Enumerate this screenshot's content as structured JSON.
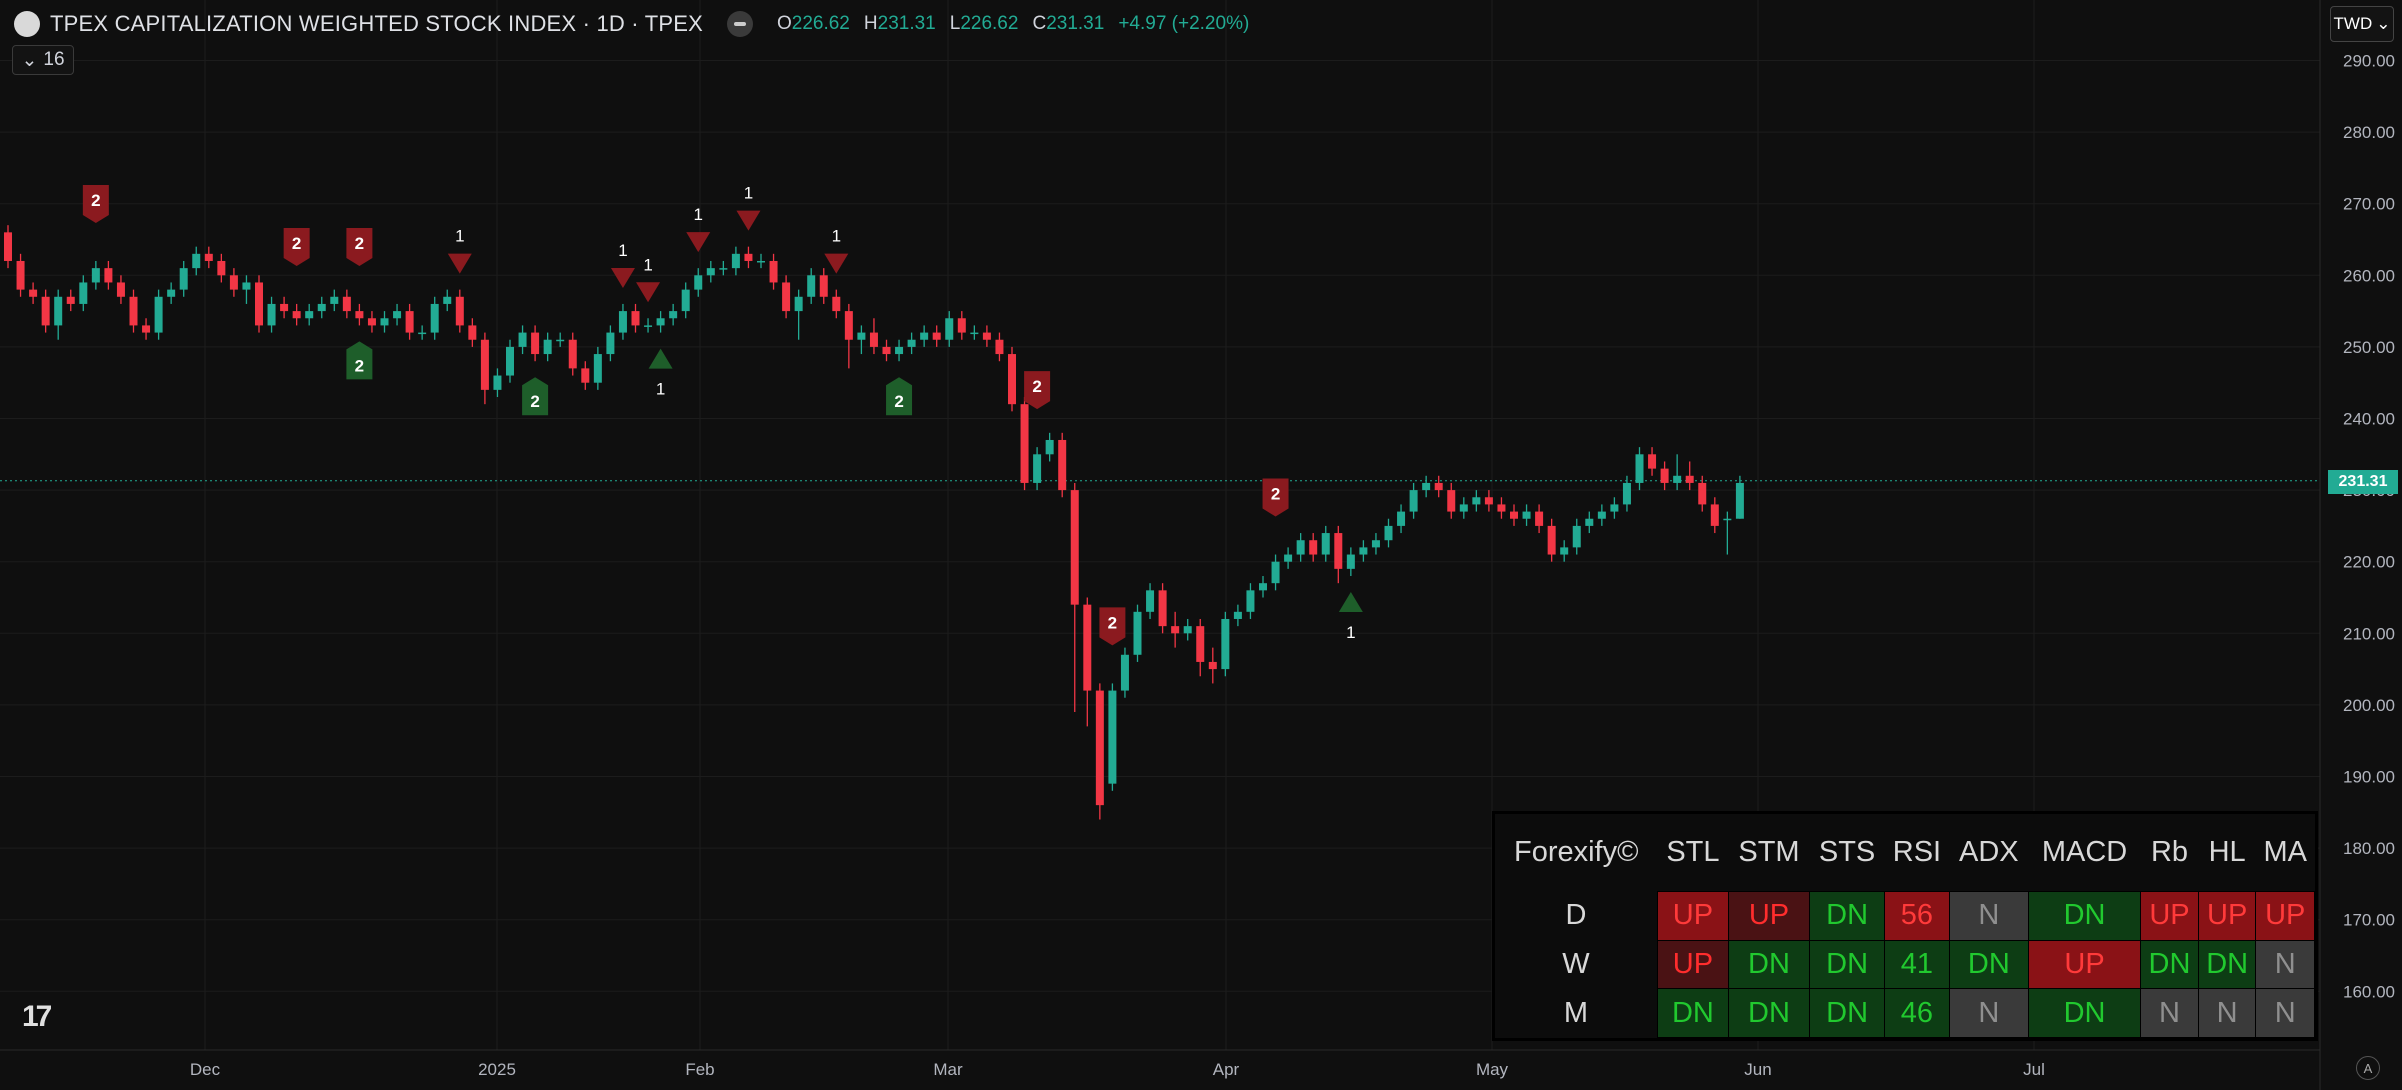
{
  "header": {
    "title": "TPEX CAPITALIZATION WEIGHTED STOCK INDEX · 1D · TPEX",
    "o_label": "O",
    "o_value": "226.62",
    "h_label": "H",
    "h_value": "231.31",
    "l_label": "L",
    "l_value": "226.62",
    "c_label": "C",
    "c_value": "231.31",
    "change": "+4.97 (+2.20%)"
  },
  "indicator_count": "16",
  "currency": "TWD",
  "last_price": "231.31",
  "colors": {
    "up": "#22ab94",
    "down": "#f23645",
    "buy_marker": "#1e5e2a",
    "sell_marker": "#8b1a1f"
  },
  "price_axis": {
    "ticks": [
      "290.00",
      "280.00",
      "270.00",
      "260.00",
      "250.00",
      "240.00",
      "230.00",
      "220.00",
      "210.00",
      "200.00",
      "190.00",
      "180.00",
      "170.00",
      "160.00"
    ]
  },
  "time_axis": {
    "ticks": [
      "Dec",
      "2025",
      "Feb",
      "Mar",
      "Apr",
      "May",
      "Jun",
      "Jul"
    ]
  },
  "signal_table": {
    "brand": "Forexify©",
    "columns": [
      "STL",
      "STM",
      "STS",
      "RSI",
      "ADX",
      "MACD",
      "Rb",
      "HL",
      "MA"
    ],
    "rows": [
      {
        "label": "D",
        "cells": [
          {
            "t": "UP",
            "c": "upb"
          },
          {
            "t": "UP",
            "c": "up"
          },
          {
            "t": "DN",
            "c": "dn"
          },
          {
            "t": "56",
            "c": "upb"
          },
          {
            "t": "N",
            "c": "n"
          },
          {
            "t": "DN",
            "c": "dn"
          },
          {
            "t": "UP",
            "c": "upb"
          },
          {
            "t": "UP",
            "c": "upb"
          },
          {
            "t": "UP",
            "c": "upb"
          }
        ]
      },
      {
        "label": "W",
        "cells": [
          {
            "t": "UP",
            "c": "up"
          },
          {
            "t": "DN",
            "c": "dn"
          },
          {
            "t": "DN",
            "c": "dn"
          },
          {
            "t": "41",
            "c": "dn"
          },
          {
            "t": "DN",
            "c": "dn"
          },
          {
            "t": "UP",
            "c": "upb"
          },
          {
            "t": "DN",
            "c": "dn"
          },
          {
            "t": "DN",
            "c": "dn"
          },
          {
            "t": "N",
            "c": "n"
          }
        ]
      },
      {
        "label": "M",
        "cells": [
          {
            "t": "DN",
            "c": "dn"
          },
          {
            "t": "DN",
            "c": "dn"
          },
          {
            "t": "DN",
            "c": "dn"
          },
          {
            "t": "46",
            "c": "dn"
          },
          {
            "t": "N",
            "c": "n"
          },
          {
            "t": "DN",
            "c": "dn"
          },
          {
            "t": "N",
            "c": "n"
          },
          {
            "t": "N",
            "c": "n"
          },
          {
            "t": "N",
            "c": "n"
          }
        ]
      }
    ]
  },
  "chart_data": {
    "type": "candlestick",
    "title": "TPEX CAPITALIZATION WEIGHTED STOCK INDEX · 1D · TPEX",
    "ylim": [
      155,
      293
    ],
    "candles": [
      [
        266,
        267,
        261,
        262
      ],
      [
        262,
        263,
        257,
        258
      ],
      [
        258,
        259,
        256,
        257
      ],
      [
        257,
        258,
        252,
        253
      ],
      [
        253,
        258,
        251,
        257
      ],
      [
        257,
        258,
        255,
        256
      ],
      [
        256,
        260,
        255,
        259
      ],
      [
        259,
        262,
        258,
        261
      ],
      [
        261,
        262,
        258,
        259
      ],
      [
        259,
        260,
        256,
        257
      ],
      [
        257,
        258,
        252,
        253
      ],
      [
        253,
        254,
        251,
        252
      ],
      [
        252,
        258,
        251,
        257
      ],
      [
        257,
        259,
        256,
        258
      ],
      [
        258,
        262,
        257,
        261
      ],
      [
        261,
        264,
        260,
        263
      ],
      [
        263,
        264,
        261,
        262
      ],
      [
        262,
        263,
        259,
        260
      ],
      [
        260,
        261,
        257,
        258
      ],
      [
        258,
        260,
        256,
        259
      ],
      [
        259,
        260,
        252,
        253
      ],
      [
        253,
        257,
        252,
        256
      ],
      [
        256,
        257,
        254,
        255
      ],
      [
        255,
        256,
        253,
        254
      ],
      [
        254,
        256,
        253,
        255
      ],
      [
        255,
        257,
        254,
        256
      ],
      [
        256,
        258,
        255,
        257
      ],
      [
        257,
        258,
        254,
        255
      ],
      [
        255,
        256,
        253,
        254
      ],
      [
        254,
        255,
        252,
        253
      ],
      [
        253,
        255,
        252,
        254
      ],
      [
        254,
        256,
        253,
        255
      ],
      [
        255,
        256,
        251,
        252
      ],
      [
        252,
        253,
        251,
        252
      ],
      [
        252,
        257,
        251,
        256
      ],
      [
        256,
        258,
        255,
        257
      ],
      [
        257,
        258,
        252,
        253
      ],
      [
        253,
        254,
        250,
        251
      ],
      [
        251,
        252,
        242,
        244
      ],
      [
        244,
        247,
        243,
        246
      ],
      [
        246,
        251,
        245,
        250
      ],
      [
        250,
        253,
        249,
        252
      ],
      [
        252,
        253,
        248,
        249
      ],
      [
        249,
        252,
        248,
        251
      ],
      [
        251,
        252,
        250,
        251
      ],
      [
        251,
        252,
        246,
        247
      ],
      [
        247,
        248,
        244,
        245
      ],
      [
        245,
        250,
        244,
        249
      ],
      [
        249,
        253,
        248,
        252
      ],
      [
        252,
        256,
        251,
        255
      ],
      [
        255,
        256,
        252,
        253
      ],
      [
        253,
        254,
        252,
        253
      ],
      [
        253,
        255,
        252,
        254
      ],
      [
        254,
        256,
        253,
        255
      ],
      [
        255,
        259,
        254,
        258
      ],
      [
        258,
        261,
        257,
        260
      ],
      [
        260,
        262,
        259,
        261
      ],
      [
        261,
        262,
        260,
        261
      ],
      [
        261,
        264,
        260,
        263
      ],
      [
        263,
        264,
        261,
        262
      ],
      [
        262,
        263,
        261,
        262
      ],
      [
        262,
        263,
        258,
        259
      ],
      [
        259,
        260,
        254,
        255
      ],
      [
        255,
        258,
        251,
        257
      ],
      [
        257,
        261,
        256,
        260
      ],
      [
        260,
        261,
        256,
        257
      ],
      [
        257,
        258,
        254,
        255
      ],
      [
        255,
        256,
        247,
        251
      ],
      [
        251,
        253,
        249,
        252
      ],
      [
        252,
        254,
        249,
        250
      ],
      [
        250,
        251,
        248,
        249
      ],
      [
        249,
        251,
        248,
        250
      ],
      [
        250,
        252,
        249,
        251
      ],
      [
        251,
        253,
        250,
        252
      ],
      [
        252,
        253,
        250,
        251
      ],
      [
        251,
        255,
        250,
        254
      ],
      [
        254,
        255,
        251,
        252
      ],
      [
        252,
        253,
        251,
        252
      ],
      [
        252,
        253,
        250,
        251
      ],
      [
        251,
        252,
        248,
        249
      ],
      [
        249,
        250,
        241,
        242
      ],
      [
        242,
        243,
        230,
        231
      ],
      [
        231,
        236,
        230,
        235
      ],
      [
        235,
        238,
        234,
        237
      ],
      [
        237,
        238,
        229,
        230
      ],
      [
        230,
        231,
        199,
        214
      ],
      [
        214,
        215,
        197,
        202
      ],
      [
        202,
        203,
        184,
        186
      ],
      [
        189,
        203,
        188,
        202
      ],
      [
        202,
        208,
        201,
        207
      ],
      [
        207,
        214,
        206,
        213
      ],
      [
        213,
        217,
        212,
        216
      ],
      [
        216,
        217,
        210,
        211
      ],
      [
        211,
        213,
        208,
        210
      ],
      [
        210,
        212,
        209,
        211
      ],
      [
        211,
        212,
        204,
        206
      ],
      [
        206,
        208,
        203,
        205
      ],
      [
        205,
        213,
        204,
        212
      ],
      [
        212,
        214,
        211,
        213
      ],
      [
        213,
        217,
        212,
        216
      ],
      [
        216,
        218,
        215,
        217
      ],
      [
        217,
        221,
        216,
        220
      ],
      [
        220,
        222,
        219,
        221
      ],
      [
        221,
        224,
        220,
        223
      ],
      [
        223,
        224,
        220,
        221
      ],
      [
        221,
        225,
        220,
        224
      ],
      [
        224,
        225,
        217,
        219
      ],
      [
        219,
        222,
        218,
        221
      ],
      [
        221,
        223,
        220,
        222
      ],
      [
        222,
        224,
        221,
        223
      ],
      [
        223,
        226,
        222,
        225
      ],
      [
        225,
        228,
        224,
        227
      ],
      [
        227,
        231,
        226,
        230
      ],
      [
        230,
        232,
        229,
        231
      ],
      [
        231,
        232,
        229,
        230
      ],
      [
        230,
        231,
        226,
        227
      ],
      [
        227,
        229,
        226,
        228
      ],
      [
        228,
        230,
        227,
        229
      ],
      [
        229,
        230,
        227,
        228
      ],
      [
        228,
        229,
        226,
        227
      ],
      [
        227,
        228,
        225,
        226
      ],
      [
        226,
        228,
        225,
        227
      ],
      [
        227,
        228,
        224,
        225
      ],
      [
        225,
        226,
        220,
        221
      ],
      [
        221,
        223,
        220,
        222
      ],
      [
        222,
        226,
        221,
        225
      ],
      [
        225,
        227,
        224,
        226
      ],
      [
        226,
        228,
        225,
        227
      ],
      [
        227,
        229,
        226,
        228
      ],
      [
        228,
        232,
        227,
        231
      ],
      [
        231,
        236,
        230,
        235
      ],
      [
        235,
        236,
        232,
        233
      ],
      [
        233,
        234,
        230,
        231
      ],
      [
        231,
        235,
        230,
        232
      ],
      [
        232,
        234,
        230,
        231
      ],
      [
        231,
        232,
        227,
        228
      ],
      [
        228,
        229,
        224,
        225
      ],
      [
        226,
        227,
        221,
        226
      ],
      [
        226,
        232,
        226,
        231
      ]
    ],
    "signals": [
      {
        "i": 7,
        "type": "sell-box",
        "label": "2"
      },
      {
        "i": 23,
        "type": "sell-box",
        "label": "2"
      },
      {
        "i": 28,
        "type": "sell-box",
        "label": "2"
      },
      {
        "i": 28,
        "type": "buy-box",
        "label": "2"
      },
      {
        "i": 36,
        "type": "sell-arrow",
        "label": "1"
      },
      {
        "i": 42,
        "type": "buy-box",
        "label": "2"
      },
      {
        "i": 49,
        "type": "sell-arrow",
        "label": "1"
      },
      {
        "i": 51,
        "type": "sell-arrow",
        "label": "1"
      },
      {
        "i": 52,
        "type": "buy-arrow",
        "label": "1"
      },
      {
        "i": 55,
        "type": "sell-arrow",
        "label": "1"
      },
      {
        "i": 59,
        "type": "sell-arrow",
        "label": "1"
      },
      {
        "i": 66,
        "type": "sell-arrow",
        "label": "1"
      },
      {
        "i": 71,
        "type": "buy-box",
        "label": "2"
      },
      {
        "i": 82,
        "type": "sell-box",
        "label": "2"
      },
      {
        "i": 88,
        "type": "sell-box",
        "label": "2"
      },
      {
        "i": 101,
        "type": "sell-box",
        "label": "2"
      },
      {
        "i": 107,
        "type": "buy-arrow",
        "label": "1"
      }
    ]
  }
}
